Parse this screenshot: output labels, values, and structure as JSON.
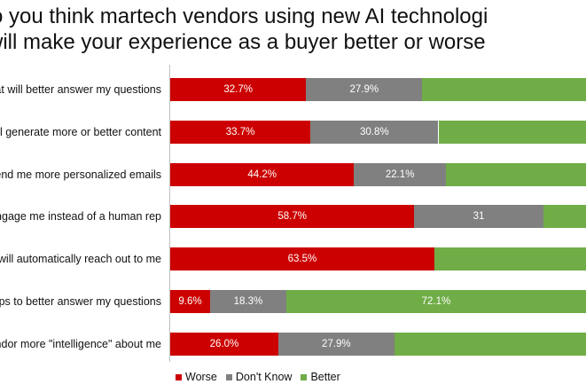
{
  "chart_data": {
    "type": "bar",
    "orientation": "horizontal",
    "stacked": true,
    "title": [
      "o you think martech vendors using new AI technologi",
      "will make your experience as a buyer better or worse"
    ],
    "categories": [
      "hat will better answer my questions",
      "will generate more or better content",
      "send me more personalized emails",
      "engage me instead of a human rep",
      "t will automatically reach out to me",
      "reps to better answer my questions",
      "endor more \"intelligence\" about me"
    ],
    "series": [
      {
        "name": "Worse",
        "color": "#cc0000",
        "values": [
          32.7,
          33.7,
          44.2,
          58.7,
          63.5,
          9.6,
          26.0
        ],
        "labels": [
          "32.7%",
          "33.7%",
          "44.2%",
          "58.7%",
          "63.5%",
          "9.6%",
          "26.0%"
        ]
      },
      {
        "name": "Don't Know",
        "color": "#808080",
        "values": [
          27.9,
          30.8,
          22.1,
          31,
          null,
          18.3,
          27.9
        ],
        "labels": [
          "27.9%",
          "30.8%",
          "22.1%",
          "31",
          "",
          "18.3%",
          "27.9%"
        ]
      },
      {
        "name": "Better",
        "color": "#70ad47",
        "values": [
          null,
          null,
          null,
          null,
          null,
          72.1,
          null
        ],
        "labels": [
          "",
          "",
          "",
          "",
          "",
          "72.1%",
          ""
        ]
      }
    ],
    "xlim": [
      0,
      100
    ],
    "legend": {
      "position": "bottom",
      "entries": [
        "Worse",
        "Don't Know",
        "Better"
      ]
    },
    "grid": false
  }
}
